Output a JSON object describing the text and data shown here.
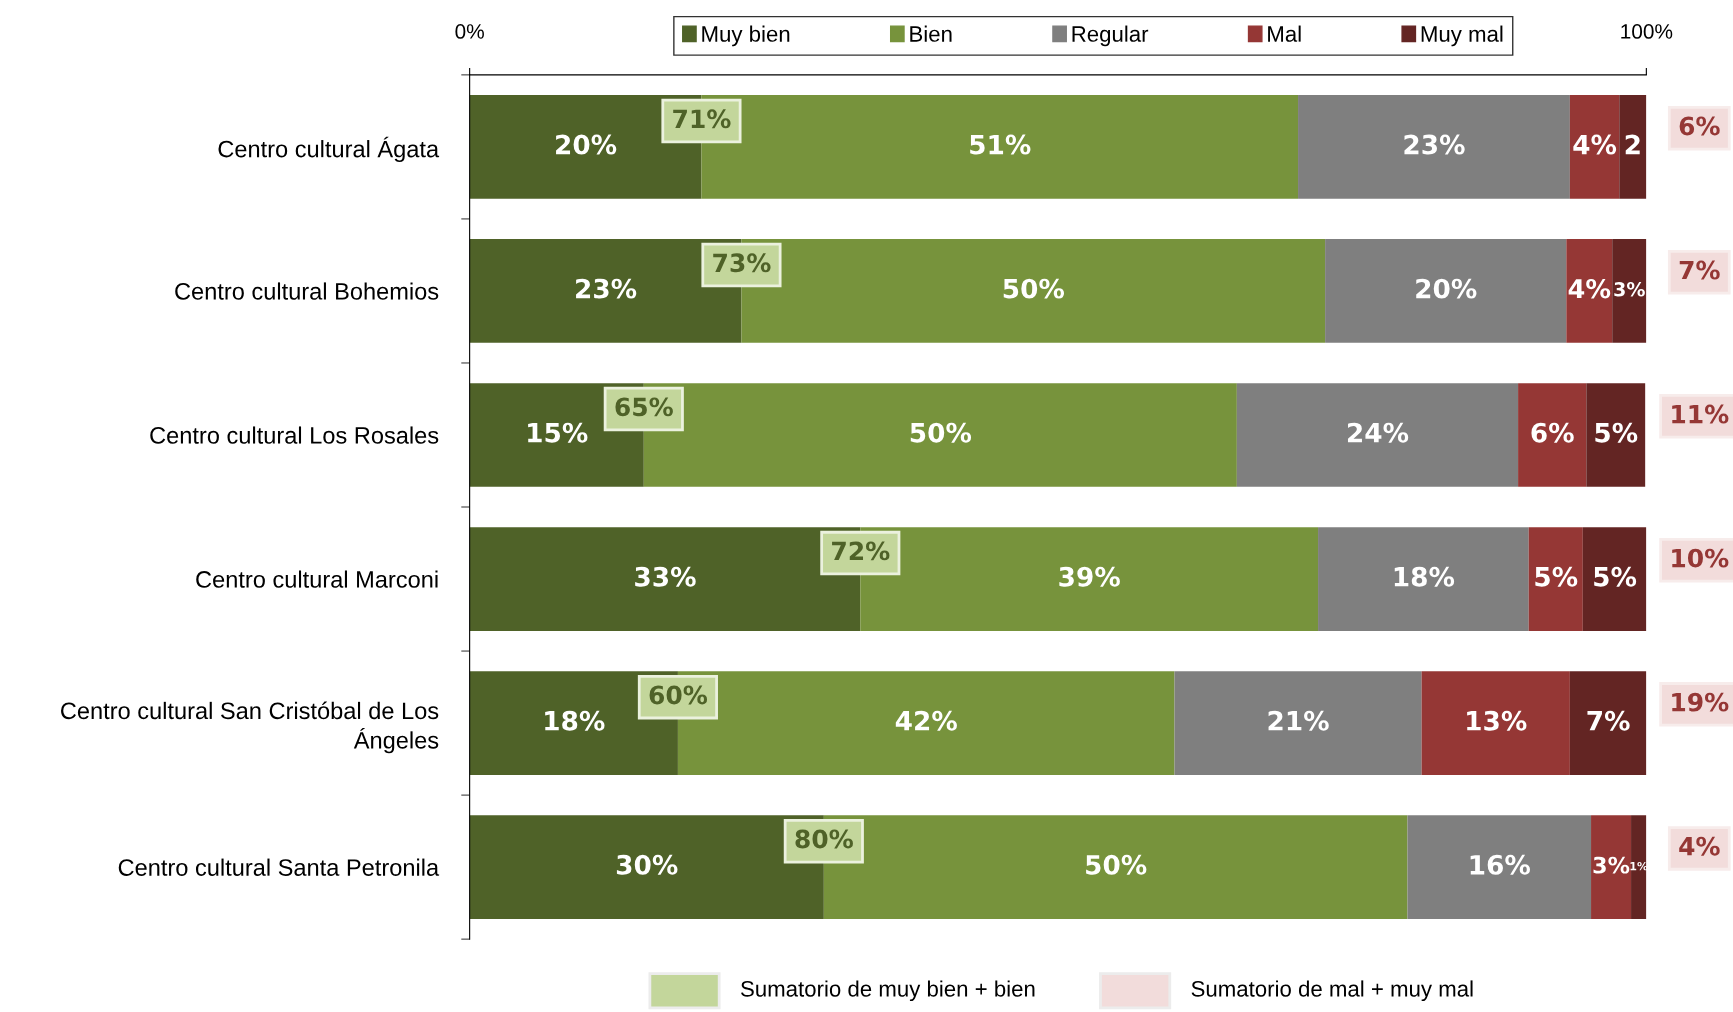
{
  "chart_data": {
    "type": "bar",
    "orientation": "horizontal",
    "stacked": true,
    "legend": "top",
    "grid": false,
    "categories": [
      "Centro cultural Ágata",
      "Centro cultural Bohemios",
      "Centro cultural Los Rosales",
      "Centro cultural Marconi",
      "Centro cultural San Cristóbal de Los Ángeles",
      "Centro cultural Santa Petronila"
    ],
    "xlim": [
      0,
      100
    ],
    "xticks": [
      {
        "value": 0,
        "label": "0%"
      },
      {
        "value": 100,
        "label": "100%"
      }
    ],
    "series": [
      {
        "name": "Muy bien",
        "color": "#4f6228",
        "values": [
          19.7,
          23.1,
          14.8,
          33.2,
          17.7,
          30.1
        ],
        "value_labels": [
          "20%",
          "23%",
          "15%",
          "33%",
          "18%",
          "30%"
        ]
      },
      {
        "name": "Bien",
        "color": "#77933c",
        "values": [
          50.7,
          49.6,
          50.4,
          38.9,
          42.2,
          49.6
        ],
        "value_labels": [
          "51%",
          "50%",
          "50%",
          "39%",
          "42%",
          "50%"
        ]
      },
      {
        "name": "Regular",
        "color": "#7f7f7f",
        "values": [
          23.1,
          20.5,
          23.9,
          17.9,
          21.0,
          15.6
        ],
        "value_labels": [
          "23%",
          "20%",
          "24%",
          "18%",
          "21%",
          "16%"
        ]
      },
      {
        "name": "Mal",
        "color": "#953735",
        "values": [
          4.2,
          3.9,
          5.8,
          4.6,
          12.6,
          3.4
        ],
        "value_labels": [
          "4%",
          "4%",
          "6%",
          "5%",
          "13%",
          "3%"
        ]
      },
      {
        "name": "Muy mal",
        "color": "#632523",
        "values": [
          2.3,
          2.9,
          5.0,
          5.4,
          6.5,
          1.3
        ],
        "value_labels": [
          "2",
          "3%",
          "5%",
          "5%",
          "7%",
          "1%"
        ]
      }
    ],
    "annotations": [
      {
        "text": "71%",
        "x": 19.7,
        "y": "Centro cultural Ágata"
      },
      {
        "text": "73%",
        "x": 23.1,
        "y": "Centro cultural Bohemios"
      },
      {
        "text": "65%",
        "x": 14.8,
        "y": "Centro cultural Los Rosales"
      },
      {
        "text": "72%",
        "x": 33.2,
        "y": "Centro cultural Marconi"
      },
      {
        "text": "60%",
        "x": 17.7,
        "y": "Centro cultural San Cristóbal de Los Ángeles"
      },
      {
        "text": "80%",
        "x": 30.1,
        "y": "Centro cultural Santa Petronila"
      },
      {
        "text": "6%",
        "x": 100,
        "y": "Centro cultural Ágata"
      },
      {
        "text": "7%",
        "x": 100,
        "y": "Centro cultural Bohemios"
      },
      {
        "text": "11%",
        "x": 100,
        "y": "Centro cultural Los Rosales"
      },
      {
        "text": "10%",
        "x": 100,
        "y": "Centro cultural Marconi"
      },
      {
        "text": "19%",
        "x": 100,
        "y": "Centro cultural San Cristóbal de Los Ángeles"
      },
      {
        "text": "4%",
        "x": 100,
        "y": "Centro cultural Santa Petronila"
      },
      "Sumatorio de muy bien + bien",
      "Sumatorio de mal + muy mal"
    ]
  }
}
